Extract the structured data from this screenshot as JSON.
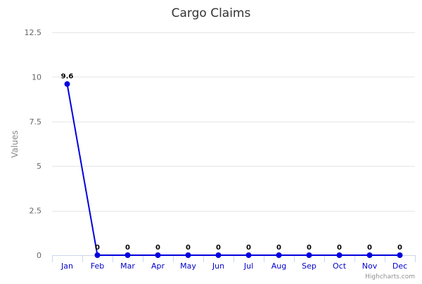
{
  "chart_data": {
    "type": "line",
    "title": "Cargo Claims",
    "ylabel": "Values",
    "xlabel": "",
    "categories": [
      "Jan",
      "Feb",
      "Mar",
      "Apr",
      "May",
      "Jun",
      "Jul",
      "Aug",
      "Sep",
      "Oct",
      "Nov",
      "Dec"
    ],
    "series": [
      {
        "values": [
          9.6,
          0,
          0,
          0,
          0,
          0,
          0,
          0,
          0,
          0,
          0,
          0
        ]
      }
    ],
    "data_labels": [
      "9.6",
      "0",
      "0",
      "0",
      "0",
      "0",
      "0",
      "0",
      "0",
      "0",
      "0",
      "0"
    ],
    "y_ticks": [
      0,
      2.5,
      5,
      7.5,
      10,
      12.5
    ],
    "y_tick_labels": [
      "0",
      "2.5",
      "5",
      "7.5",
      "10",
      "12.5"
    ],
    "ylim": [
      0,
      12.5
    ],
    "grid": true,
    "legend": "none",
    "line_color": "#0000dd",
    "x_label_color": "#0000cc"
  },
  "credits": "Highcharts.com"
}
